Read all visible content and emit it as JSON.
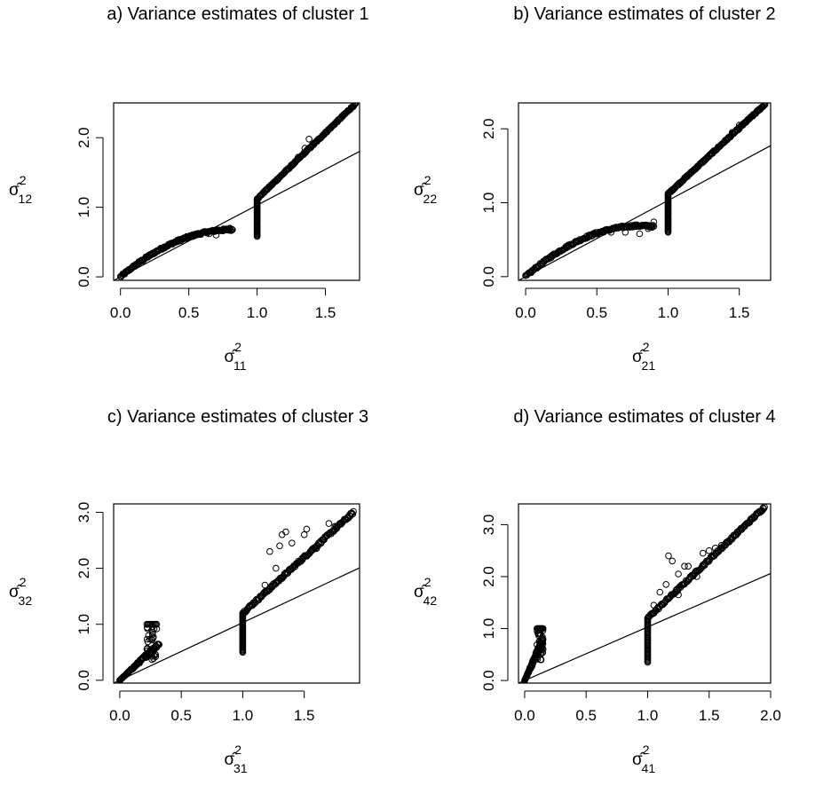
{
  "chart_data": [
    {
      "type": "scatter",
      "title": "a) Variance estimates of cluster 1",
      "xlabel": {
        "base": "σ̂",
        "sup": "2",
        "sub": "11"
      },
      "ylabel": {
        "base": "σ̂",
        "sup": "2",
        "sub": "12"
      },
      "xlim": [
        -0.05,
        1.75
      ],
      "ylim": [
        -0.05,
        2.5
      ],
      "xticks": [
        {
          "v": 0.0,
          "label": "0.0"
        },
        {
          "v": 0.5,
          "label": "0.5"
        },
        {
          "v": 1.0,
          "label": "1.0"
        },
        {
          "v": 1.5,
          "label": "1.5"
        }
      ],
      "yticks": [
        {
          "v": 0.0,
          "label": "0.0"
        },
        {
          "v": 1.0,
          "label": "1.0"
        },
        {
          "v": 2.0,
          "label": "2.0"
        }
      ],
      "reference_line": {
        "intercept": 0,
        "slope": 1.03
      },
      "grid": false,
      "legend": "none",
      "points": {
        "curve_a": 1.65,
        "curve_b": 1.0,
        "curve_xmax": 0.82,
        "curve_scatter": 0.03,
        "vert_x": 1.0,
        "vert_ymin": 0.58,
        "vert_ymax": 1.12,
        "upper_slope": 1.9,
        "upper_xmax": 1.72,
        "upper_scatter": 0.02,
        "outliers": [
          [
            0.55,
            0.6
          ],
          [
            0.7,
            0.6
          ],
          [
            0.75,
            0.66
          ],
          [
            1.35,
            1.85
          ],
          [
            1.38,
            1.98
          ],
          [
            1.3,
            1.72
          ],
          [
            0.8,
            0.7
          ],
          [
            0.65,
            0.62
          ]
        ]
      }
    },
    {
      "type": "scatter",
      "title": "b) Variance estimates of cluster 2",
      "xlabel": {
        "base": "σ̂",
        "sup": "2",
        "sub": "21"
      },
      "ylabel": {
        "base": "σ̂",
        "sup": "2",
        "sub": "22"
      },
      "xlim": [
        -0.05,
        1.72
      ],
      "ylim": [
        -0.05,
        2.35
      ],
      "xticks": [
        {
          "v": 0.0,
          "label": "0.0"
        },
        {
          "v": 0.5,
          "label": "0.5"
        },
        {
          "v": 1.0,
          "label": "1.0"
        },
        {
          "v": 1.5,
          "label": "1.5"
        }
      ],
      "yticks": [
        {
          "v": 0.0,
          "label": "0.0"
        },
        {
          "v": 1.0,
          "label": "1.0"
        },
        {
          "v": 2.0,
          "label": "2.0"
        }
      ],
      "reference_line": {
        "intercept": 0,
        "slope": 1.03
      },
      "grid": false,
      "legend": "none",
      "points": {
        "curve_a": 1.7,
        "curve_b": 1.05,
        "curve_xmax": 0.9,
        "curve_scatter": 0.03,
        "vert_x": 1.0,
        "vert_ymin": 0.6,
        "vert_ymax": 1.12,
        "upper_slope": 1.78,
        "upper_xmax": 1.68,
        "upper_scatter": 0.02,
        "outliers": [
          [
            0.6,
            0.6
          ],
          [
            0.7,
            0.6
          ],
          [
            0.8,
            0.58
          ],
          [
            0.86,
            0.65
          ],
          [
            0.9,
            0.74
          ],
          [
            1.45,
            1.95
          ],
          [
            1.5,
            2.05
          ],
          [
            1.55,
            2.1
          ]
        ]
      }
    },
    {
      "type": "scatter",
      "title": "c) Variance estimates of cluster 3",
      "xlabel": {
        "base": "σ̂",
        "sup": "2",
        "sub": "31"
      },
      "ylabel": {
        "base": "σ̂",
        "sup": "2",
        "sub": "32"
      },
      "xlim": [
        -0.05,
        1.95
      ],
      "ylim": [
        -0.05,
        3.15
      ],
      "xticks": [
        {
          "v": 0.0,
          "label": "0.0"
        },
        {
          "v": 0.5,
          "label": "0.5"
        },
        {
          "v": 1.0,
          "label": "1.0"
        },
        {
          "v": 1.5,
          "label": "1.5"
        }
      ],
      "yticks": [
        {
          "v": 0.0,
          "label": "0.0"
        },
        {
          "v": 1.0,
          "label": "1.0"
        },
        {
          "v": 2.0,
          "label": "2.0"
        },
        {
          "v": 3.0,
          "label": "3.0"
        }
      ],
      "reference_line": {
        "intercept": 0,
        "slope": 1.03
      },
      "grid": false,
      "legend": "none",
      "points": {
        "low_slope": 2.0,
        "low_xmax": 0.32,
        "low_scatter": 0.15,
        "low_cap": 1.0,
        "low_cap_x": [
          0.22,
          0.3
        ],
        "vert_x": 1.0,
        "vert_ymin": 0.5,
        "vert_ymax": 1.2,
        "upper_slope": 2.0,
        "upper_xmax": 1.9,
        "upper_scatter": 0.05,
        "outliers": [
          [
            1.22,
            2.3
          ],
          [
            1.3,
            2.4
          ],
          [
            1.32,
            2.6
          ],
          [
            1.35,
            2.65
          ],
          [
            1.4,
            2.45
          ],
          [
            1.5,
            2.6
          ],
          [
            1.52,
            2.7
          ],
          [
            1.6,
            2.35
          ],
          [
            1.7,
            2.8
          ],
          [
            1.75,
            2.75
          ],
          [
            1.27,
            2.0
          ],
          [
            1.18,
            1.7
          ],
          [
            0.3,
            0.92
          ],
          [
            0.27,
            0.75
          ]
        ]
      }
    },
    {
      "type": "scatter",
      "title": "d) Variance estimates of cluster 4",
      "xlabel": {
        "base": "σ̂",
        "sup": "2",
        "sub": "41"
      },
      "ylabel": {
        "base": "σ̂",
        "sup": "2",
        "sub": "42"
      },
      "xlim": [
        -0.05,
        2.0
      ],
      "ylim": [
        -0.05,
        3.4
      ],
      "xticks": [
        {
          "v": 0.0,
          "label": "0.0"
        },
        {
          "v": 0.5,
          "label": "0.5"
        },
        {
          "v": 1.0,
          "label": "1.0"
        },
        {
          "v": 1.5,
          "label": "1.5"
        },
        {
          "v": 2.0,
          "label": "2.0"
        }
      ],
      "yticks": [
        {
          "v": 0.0,
          "label": "0.0"
        },
        {
          "v": 1.0,
          "label": "1.0"
        },
        {
          "v": 2.0,
          "label": "2.0"
        },
        {
          "v": 3.0,
          "label": "3.0"
        }
      ],
      "reference_line": {
        "intercept": 0,
        "slope": 1.03
      },
      "grid": false,
      "legend": "none",
      "points": {
        "low_slope": 5.0,
        "low_xmax": 0.15,
        "low_scatter": 0.25,
        "low_cap": 1.0,
        "low_cap_x": [
          0.1,
          0.15
        ],
        "vert_x": 1.0,
        "vert_ymin": 0.35,
        "vert_ymax": 1.2,
        "upper_slope": 2.25,
        "upper_xmax": 1.95,
        "upper_scatter": 0.05,
        "outliers": [
          [
            1.1,
            1.7
          ],
          [
            1.15,
            1.85
          ],
          [
            1.17,
            2.4
          ],
          [
            1.2,
            2.3
          ],
          [
            1.25,
            2.05
          ],
          [
            1.3,
            2.2
          ],
          [
            1.33,
            2.2
          ],
          [
            1.4,
            2.0
          ],
          [
            1.45,
            2.45
          ],
          [
            1.5,
            2.5
          ],
          [
            1.55,
            2.55
          ],
          [
            1.6,
            2.6
          ],
          [
            1.05,
            1.45
          ],
          [
            1.25,
            1.65
          ],
          [
            0.13,
            0.4
          ],
          [
            0.15,
            0.6
          ]
        ]
      }
    }
  ]
}
